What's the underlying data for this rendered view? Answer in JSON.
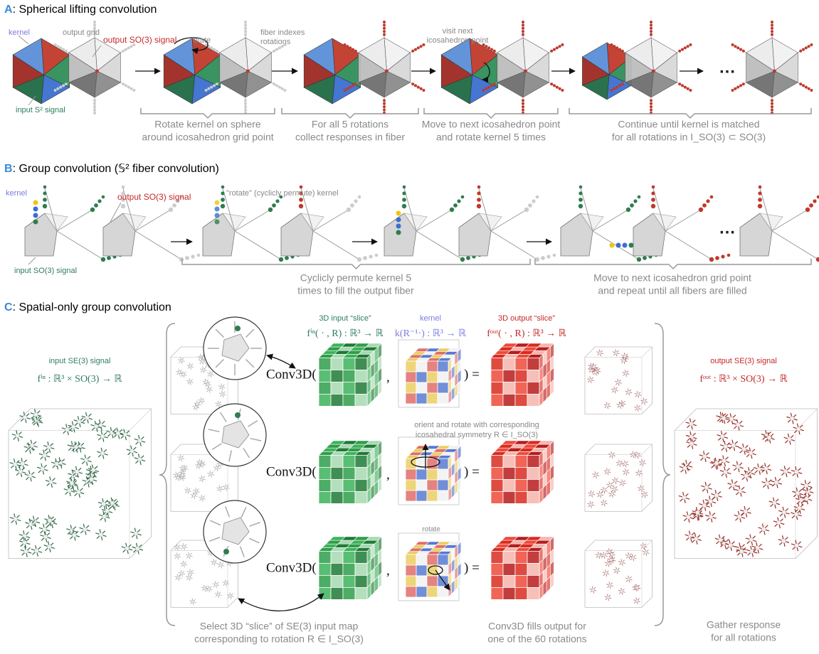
{
  "panel_a": {
    "label": "A",
    "title": ": Spherical lifting convolution",
    "kernel": "kernel",
    "output_grid": "output grid",
    "output_signal": "output SO(3) signal",
    "rotate": "rotate",
    "fiber": [
      "fiber indexes",
      "rotations"
    ],
    "visit": [
      "visit next",
      "icosahedron point"
    ],
    "input_signal": "input S² signal",
    "ellipsis": "…",
    "captions": [
      [
        "Rotate kernel on sphere",
        "around icosahedron grid point"
      ],
      [
        "For all 5 rotations",
        "collect responses in fiber"
      ],
      [
        "Move to next icosahedron point",
        "and rotate kernel 5 times"
      ],
      [
        "Continue until kernel is matched",
        "for all rotations in I_SO(3) ⊂ SO(3)"
      ]
    ]
  },
  "panel_b": {
    "label": "B",
    "title": ": Group convolution (𝕊² fiber convolution)",
    "kernel": "kernel",
    "output_signal": "output SO(3) signal",
    "input_signal": "input SO(3) signal",
    "permute": "\"rotate\" (cyclicly permute) kernel",
    "ellipsis": "…",
    "captions": [
      [
        "Cyclicly permute kernel 5",
        "times to fill the output fiber"
      ],
      [
        "Move to next icosahedron grid point",
        "and repeat until all fibers are filled"
      ]
    ]
  },
  "panel_c": {
    "label": "C",
    "title": ": Spatial-only group convolution",
    "input_signal": "input SE(3) signal",
    "input_formula": "fⁱⁿ : ℝ³ × SO(3) → ℝ",
    "input_slice": "3D input “slice”",
    "input_slice_formula": "fⁱⁿ( · , R) : ℝ³ → ℝ",
    "kernel": "kernel",
    "kernel_formula": "k(R⁻¹·) : ℝ³ → ℝ",
    "output_slice": "3D output “slice”",
    "output_slice_formula": "fᵒᵘᵗ( · , R) : ℝ³ → ℝ",
    "output_signal": "output SE(3) signal",
    "output_formula": "fᵒᵘᵗ : ℝ³ × SO(3) → ℝ",
    "rows": [
      {
        "conv": "Conv3D(",
        "comma": ",",
        "equals": ") ="
      },
      {
        "conv": "Conv3D(",
        "comma": ",",
        "equals": ") ="
      },
      {
        "conv": "Conv3D(",
        "comma": ",",
        "equals": ") ="
      }
    ],
    "orient": [
      "orient and rotate with corresponding",
      "icosahedral symmetry R ∈ I_SO(3)"
    ],
    "rotate": "rotate",
    "captions": [
      [
        "Select 3D “slice” of SE(3) input map",
        "corresponding to rotation R ∈ I_SO(3)"
      ],
      [
        "Conv3D fills output for",
        "one of the 60 rotations"
      ],
      [
        "Gather response",
        "for all rotations"
      ]
    ]
  }
}
